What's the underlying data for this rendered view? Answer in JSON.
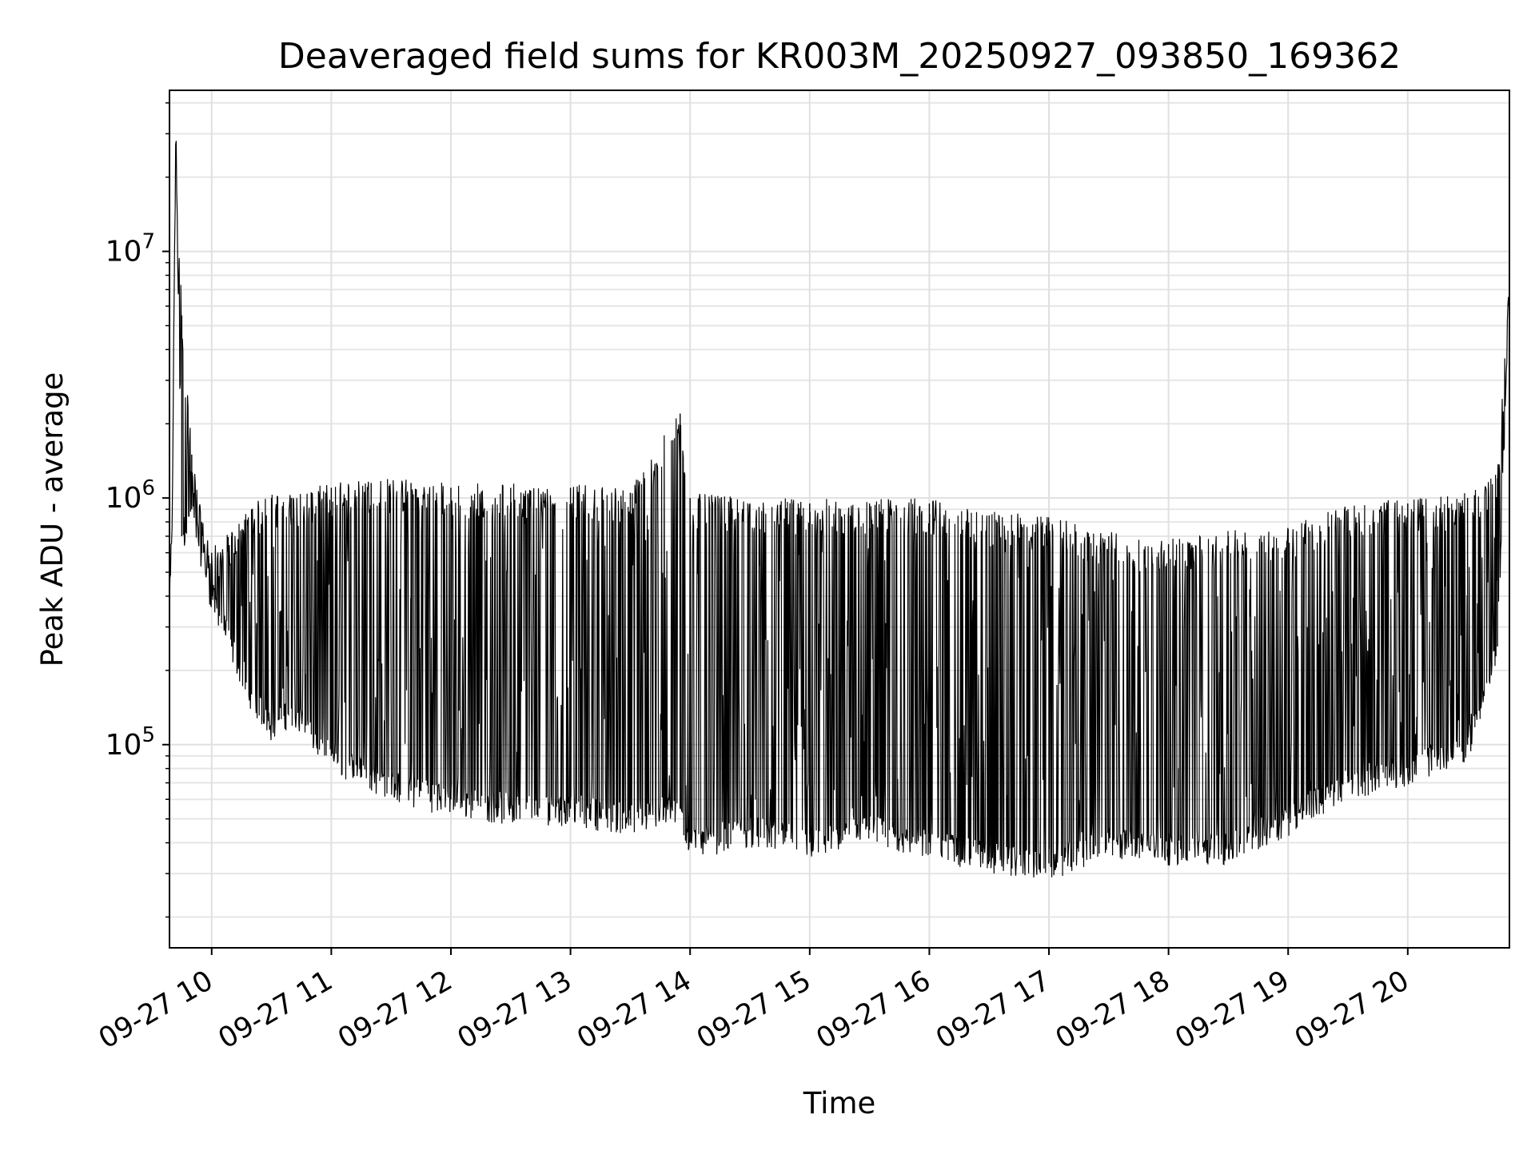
{
  "chart_data": {
    "type": "line",
    "title": "Deaveraged field sums for KR003M_20250927_093850_169362",
    "xlabel": "Time",
    "ylabel": "Peak ADU - average",
    "yscale": "log",
    "ylim": [
      15000,
      45000000
    ],
    "xlim": [
      "2025-09-27 09:38:50",
      "2025-09-27 20:51:00"
    ],
    "grid": true,
    "line_color": "#000000",
    "x_ticks": [
      "09-27 10",
      "09-27 11",
      "09-27 12",
      "09-27 13",
      "09-27 14",
      "09-27 15",
      "09-27 16",
      "09-27 17",
      "09-27 18",
      "09-27 19",
      "09-27 20"
    ],
    "y_ticks": [
      {
        "base": "10",
        "exp": "5"
      },
      {
        "base": "10",
        "exp": "6"
      },
      {
        "base": "10",
        "exp": "7"
      }
    ],
    "series": [
      {
        "x": [
          "2025-09-27 09:38:50",
          "2025-09-27 09:40:00",
          "2025-09-27 09:42:00",
          "2025-09-27 09:45:00",
          "2025-09-27 09:50:00",
          "2025-09-27 09:55:00",
          "2025-09-27 10:00:00",
          "2025-09-27 10:10:00",
          "2025-09-27 10:20:00",
          "2025-09-27 10:30:00",
          "2025-09-27 10:40:00",
          "2025-09-27 10:50:00",
          "2025-09-27 11:00:00",
          "2025-09-27 11:20:00",
          "2025-09-27 11:40:00",
          "2025-09-27 12:00:00",
          "2025-09-27 12:30:00",
          "2025-09-27 13:00:00",
          "2025-09-27 13:30:00",
          "2025-09-27 13:55:00",
          "2025-09-27 14:00:00",
          "2025-09-27 14:30:00",
          "2025-09-27 15:00:00",
          "2025-09-27 15:30:00",
          "2025-09-27 16:00:00",
          "2025-09-27 16:30:00",
          "2025-09-27 17:00:00",
          "2025-09-27 17:30:00",
          "2025-09-27 18:00:00",
          "2025-09-27 18:30:00",
          "2025-09-27 19:00:00",
          "2025-09-27 19:30:00",
          "2025-09-27 20:00:00",
          "2025-09-27 20:30:00",
          "2025-09-27 20:45:00",
          "2025-09-27 20:51:00"
        ],
        "y": [
          400000,
          700000,
          32000000,
          700000,
          900000,
          600000,
          400000,
          250000,
          160000,
          120000,
          140000,
          110000,
          90000,
          75000,
          65000,
          60000,
          55000,
          55000,
          50000,
          55000,
          40000,
          45000,
          40000,
          45000,
          40000,
          35000,
          33000,
          40000,
          38000,
          38000,
          50000,
          70000,
          80000,
          100000,
          250000,
          7500000
        ],
        "upper": [
          400000,
          700000,
          32000000,
          5500000,
          1500000,
          800000,
          600000,
          700000,
          900000,
          1000000,
          1000000,
          1050000,
          1100000,
          1150000,
          1150000,
          1100000,
          1100000,
          1100000,
          1050000,
          2200000,
          1000000,
          950000,
          950000,
          950000,
          950000,
          850000,
          800000,
          700000,
          650000,
          700000,
          750000,
          900000,
          950000,
          1000000,
          1200000,
          7500000
        ]
      }
    ]
  }
}
